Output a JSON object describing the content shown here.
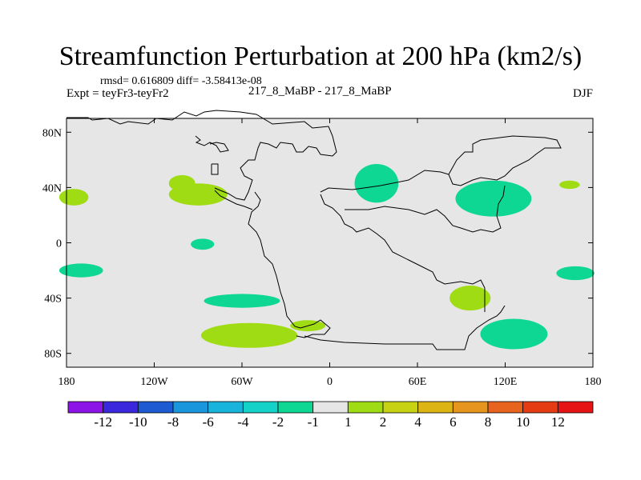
{
  "chart_data": {
    "type": "heatmap",
    "title": "Streamfunction Perturbation at 200 hPa (km2/s)",
    "stats_line": "rmsd= 0.616809 diff= -3.58413e-08",
    "experiment_label": "Expt = teyFr3-teyFr2",
    "center_label": "217_8_MaBP - 217_8_MaBP",
    "season_label": "DJF",
    "x_axis": {
      "range": [
        -180,
        180
      ],
      "ticks": [
        {
          "value": -180,
          "label": "180"
        },
        {
          "value": -120,
          "label": "120W"
        },
        {
          "value": -60,
          "label": "60W"
        },
        {
          "value": 0,
          "label": "0"
        },
        {
          "value": 60,
          "label": "60E"
        },
        {
          "value": 120,
          "label": "120E"
        },
        {
          "value": 180,
          "label": "180"
        }
      ]
    },
    "y_axis": {
      "range": [
        -90,
        90
      ],
      "ticks": [
        {
          "value": 80,
          "label": "80N"
        },
        {
          "value": 40,
          "label": "40N"
        },
        {
          "value": 0,
          "label": "0"
        },
        {
          "value": -40,
          "label": "40S"
        },
        {
          "value": -80,
          "label": "80S"
        }
      ]
    },
    "colorbar": {
      "colors": [
        "#8c14e6",
        "#3c28dc",
        "#1e5ad2",
        "#1996dc",
        "#19b4dc",
        "#14d2c8",
        "#0ed794",
        "#e6e6e6",
        "#a0dc14",
        "#c8d214",
        "#dcb414",
        "#e6961e",
        "#e6641e",
        "#e63c14",
        "#e61414"
      ],
      "labels": [
        "-12",
        "-10",
        "-8",
        "-6",
        "-4",
        "-2",
        "-1",
        "1",
        "2",
        "4",
        "6",
        "8",
        "10",
        "12"
      ]
    },
    "anomalies": [
      {
        "lon": -175,
        "lat": 33,
        "rlon": 10,
        "rlat": 6,
        "level": "positive-1-2"
      },
      {
        "lon": -90,
        "lat": 35,
        "rlon": 20,
        "rlat": 8,
        "level": "positive-1-2"
      },
      {
        "lon": -101,
        "lat": 43,
        "rlon": 9,
        "rlat": 6,
        "level": "positive-1-2"
      },
      {
        "lon": -87,
        "lat": -1,
        "rlon": 8,
        "rlat": 4,
        "level": "negative-1-2"
      },
      {
        "lon": -170,
        "lat": -20,
        "rlon": 15,
        "rlat": 5,
        "level": "negative-1-2"
      },
      {
        "lon": -60,
        "lat": -42,
        "rlon": 26,
        "rlat": 5,
        "level": "negative-1-2"
      },
      {
        "lon": -55,
        "lat": -67,
        "rlon": 33,
        "rlat": 9,
        "level": "positive-1-2"
      },
      {
        "lon": -15,
        "lat": -60,
        "rlon": 12,
        "rlat": 4,
        "level": "positive-1-2"
      },
      {
        "lon": 32,
        "lat": 43,
        "rlon": 15,
        "rlat": 14,
        "level": "negative-1-2"
      },
      {
        "lon": 112,
        "lat": 32,
        "rlon": 26,
        "rlat": 13,
        "level": "negative-1-2"
      },
      {
        "lon": 164,
        "lat": 42,
        "rlon": 7,
        "rlat": 3,
        "level": "positive-1-2"
      },
      {
        "lon": 96,
        "lat": -40,
        "rlon": 14,
        "rlat": 9,
        "level": "positive-1-2"
      },
      {
        "lon": 126,
        "lat": -66,
        "rlon": 23,
        "rlat": 11,
        "level": "negative-1-2"
      },
      {
        "lon": 168,
        "lat": -22,
        "rlon": 13,
        "rlat": 5,
        "level": "negative-1-2"
      }
    ]
  }
}
